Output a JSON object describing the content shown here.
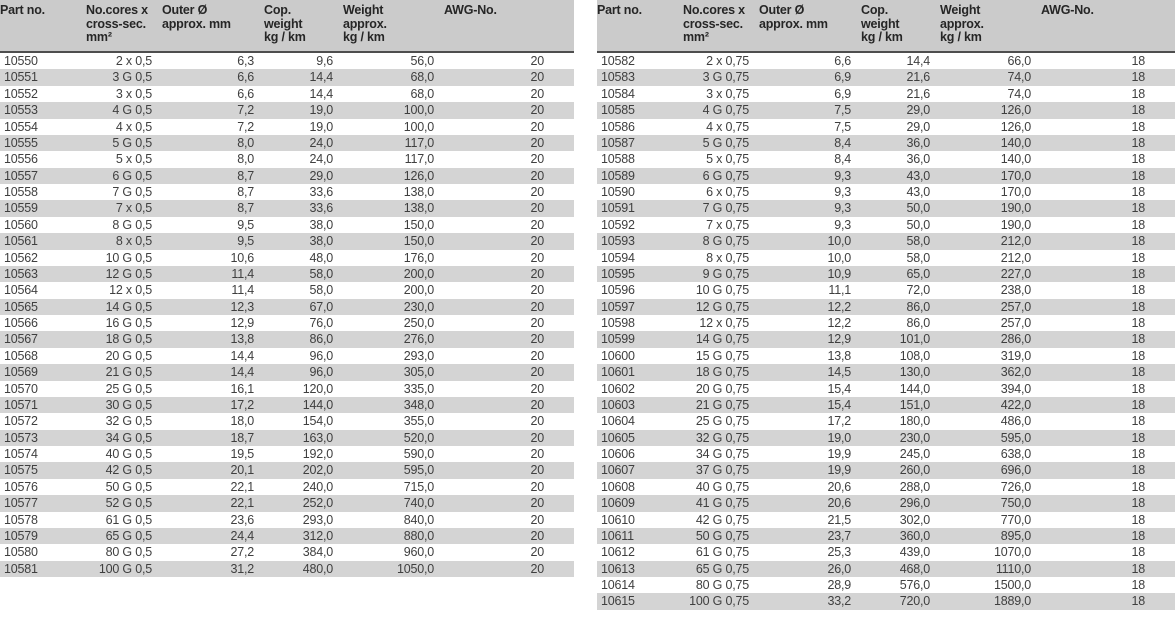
{
  "document": {
    "description": "Cable specification tables",
    "colors": {
      "header_bg": "#cbcbcb",
      "stripe_bg": "#d4d4d4",
      "header_rule": "#4e4e4e",
      "header_text": "#262626",
      "body_text": "#3f3f3f",
      "page_bg": "#ffffff"
    }
  },
  "columns": [
    {
      "id": "part",
      "lines": [
        "Part no.",
        "",
        ""
      ]
    },
    {
      "id": "cores",
      "lines": [
        "No.cores x",
        "cross-sec.",
        "mm²"
      ]
    },
    {
      "id": "outer",
      "lines": [
        "Outer Ø",
        "approx. mm",
        ""
      ]
    },
    {
      "id": "cop",
      "lines": [
        "Cop.",
        "weight",
        "kg / km"
      ]
    },
    {
      "id": "weight",
      "lines": [
        "Weight",
        "approx.",
        "kg / km"
      ]
    },
    {
      "id": "awg",
      "lines": [
        "AWG-No.",
        "",
        ""
      ]
    }
  ],
  "tables": [
    {
      "name": "cable-table-0.5mm2",
      "rows": [
        [
          "10550",
          "2 x 0,5",
          "6,3",
          "9,6",
          "56,0",
          "20"
        ],
        [
          "10551",
          "3 G 0,5",
          "6,6",
          "14,4",
          "68,0",
          "20"
        ],
        [
          "10552",
          "3 x 0,5",
          "6,6",
          "14,4",
          "68,0",
          "20"
        ],
        [
          "10553",
          "4 G 0,5",
          "7,2",
          "19,0",
          "100,0",
          "20"
        ],
        [
          "10554",
          "4 x 0,5",
          "7,2",
          "19,0",
          "100,0",
          "20"
        ],
        [
          "10555",
          "5 G 0,5",
          "8,0",
          "24,0",
          "117,0",
          "20"
        ],
        [
          "10556",
          "5 x 0,5",
          "8,0",
          "24,0",
          "117,0",
          "20"
        ],
        [
          "10557",
          "6 G 0,5",
          "8,7",
          "29,0",
          "126,0",
          "20"
        ],
        [
          "10558",
          "7 G 0,5",
          "8,7",
          "33,6",
          "138,0",
          "20"
        ],
        [
          "10559",
          "7 x 0,5",
          "8,7",
          "33,6",
          "138,0",
          "20"
        ],
        [
          "10560",
          "8 G 0,5",
          "9,5",
          "38,0",
          "150,0",
          "20"
        ],
        [
          "10561",
          "8 x 0,5",
          "9,5",
          "38,0",
          "150,0",
          "20"
        ],
        [
          "10562",
          "10 G 0,5",
          "10,6",
          "48,0",
          "176,0",
          "20"
        ],
        [
          "10563",
          "12 G 0,5",
          "11,4",
          "58,0",
          "200,0",
          "20"
        ],
        [
          "10564",
          "12 x 0,5",
          "11,4",
          "58,0",
          "200,0",
          "20"
        ],
        [
          "10565",
          "14 G 0,5",
          "12,3",
          "67,0",
          "230,0",
          "20"
        ],
        [
          "10566",
          "16 G 0,5",
          "12,9",
          "76,0",
          "250,0",
          "20"
        ],
        [
          "10567",
          "18 G 0,5",
          "13,8",
          "86,0",
          "276,0",
          "20"
        ],
        [
          "10568",
          "20 G 0,5",
          "14,4",
          "96,0",
          "293,0",
          "20"
        ],
        [
          "10569",
          "21 G 0,5",
          "14,4",
          "96,0",
          "305,0",
          "20"
        ],
        [
          "10570",
          "25 G 0,5",
          "16,1",
          "120,0",
          "335,0",
          "20"
        ],
        [
          "10571",
          "30 G 0,5",
          "17,2",
          "144,0",
          "348,0",
          "20"
        ],
        [
          "10572",
          "32 G 0,5",
          "18,0",
          "154,0",
          "355,0",
          "20"
        ],
        [
          "10573",
          "34 G 0,5",
          "18,7",
          "163,0",
          "520,0",
          "20"
        ],
        [
          "10574",
          "40 G 0,5",
          "19,5",
          "192,0",
          "590,0",
          "20"
        ],
        [
          "10575",
          "42 G 0,5",
          "20,1",
          "202,0",
          "595,0",
          "20"
        ],
        [
          "10576",
          "50 G 0,5",
          "22,1",
          "240,0",
          "715,0",
          "20"
        ],
        [
          "10577",
          "52 G 0,5",
          "22,1",
          "252,0",
          "740,0",
          "20"
        ],
        [
          "10578",
          "61 G 0,5",
          "23,6",
          "293,0",
          "840,0",
          "20"
        ],
        [
          "10579",
          "65 G 0,5",
          "24,4",
          "312,0",
          "880,0",
          "20"
        ],
        [
          "10580",
          "80 G 0,5",
          "27,2",
          "384,0",
          "960,0",
          "20"
        ],
        [
          "10581",
          "100 G 0,5",
          "31,2",
          "480,0",
          "1050,0",
          "20"
        ]
      ]
    },
    {
      "name": "cable-table-0.75mm2",
      "rows": [
        [
          "10582",
          "2 x 0,75",
          "6,6",
          "14,4",
          "66,0",
          "18"
        ],
        [
          "10583",
          "3 G 0,75",
          "6,9",
          "21,6",
          "74,0",
          "18"
        ],
        [
          "10584",
          "3 x 0,75",
          "6,9",
          "21,6",
          "74,0",
          "18"
        ],
        [
          "10585",
          "4 G 0,75",
          "7,5",
          "29,0",
          "126,0",
          "18"
        ],
        [
          "10586",
          "4 x 0,75",
          "7,5",
          "29,0",
          "126,0",
          "18"
        ],
        [
          "10587",
          "5 G 0,75",
          "8,4",
          "36,0",
          "140,0",
          "18"
        ],
        [
          "10588",
          "5 x 0,75",
          "8,4",
          "36,0",
          "140,0",
          "18"
        ],
        [
          "10589",
          "6 G 0,75",
          "9,3",
          "43,0",
          "170,0",
          "18"
        ],
        [
          "10590",
          "6 x 0,75",
          "9,3",
          "43,0",
          "170,0",
          "18"
        ],
        [
          "10591",
          "7 G 0,75",
          "9,3",
          "50,0",
          "190,0",
          "18"
        ],
        [
          "10592",
          "7 x 0,75",
          "9,3",
          "50,0",
          "190,0",
          "18"
        ],
        [
          "10593",
          "8 G 0,75",
          "10,0",
          "58,0",
          "212,0",
          "18"
        ],
        [
          "10594",
          "8 x 0,75",
          "10,0",
          "58,0",
          "212,0",
          "18"
        ],
        [
          "10595",
          "9 G 0,75",
          "10,9",
          "65,0",
          "227,0",
          "18"
        ],
        [
          "10596",
          "10 G 0,75",
          "11,1",
          "72,0",
          "238,0",
          "18"
        ],
        [
          "10597",
          "12 G 0,75",
          "12,2",
          "86,0",
          "257,0",
          "18"
        ],
        [
          "10598",
          "12 x 0,75",
          "12,2",
          "86,0",
          "257,0",
          "18"
        ],
        [
          "10599",
          "14 G 0,75",
          "12,9",
          "101,0",
          "286,0",
          "18"
        ],
        [
          "10600",
          "15 G 0,75",
          "13,8",
          "108,0",
          "319,0",
          "18"
        ],
        [
          "10601",
          "18 G 0,75",
          "14,5",
          "130,0",
          "362,0",
          "18"
        ],
        [
          "10602",
          "20 G 0,75",
          "15,4",
          "144,0",
          "394,0",
          "18"
        ],
        [
          "10603",
          "21 G 0,75",
          "15,4",
          "151,0",
          "422,0",
          "18"
        ],
        [
          "10604",
          "25 G 0,75",
          "17,2",
          "180,0",
          "486,0",
          "18"
        ],
        [
          "10605",
          "32 G 0,75",
          "19,0",
          "230,0",
          "595,0",
          "18"
        ],
        [
          "10606",
          "34 G 0,75",
          "19,9",
          "245,0",
          "638,0",
          "18"
        ],
        [
          "10607",
          "37 G 0,75",
          "19,9",
          "260,0",
          "696,0",
          "18"
        ],
        [
          "10608",
          "40 G 0,75",
          "20,6",
          "288,0",
          "726,0",
          "18"
        ],
        [
          "10609",
          "41 G 0,75",
          "20,6",
          "296,0",
          "750,0",
          "18"
        ],
        [
          "10610",
          "42 G 0,75",
          "21,5",
          "302,0",
          "770,0",
          "18"
        ],
        [
          "10611",
          "50 G 0,75",
          "23,7",
          "360,0",
          "895,0",
          "18"
        ],
        [
          "10612",
          "61 G 0,75",
          "25,3",
          "439,0",
          "1070,0",
          "18"
        ],
        [
          "10613",
          "65 G 0,75",
          "26,0",
          "468,0",
          "1110,0",
          "18"
        ],
        [
          "10614",
          "80 G 0,75",
          "28,9",
          "576,0",
          "1500,0",
          "18"
        ],
        [
          "10615",
          "100 G 0,75",
          "33,2",
          "720,0",
          "1889,0",
          "18"
        ]
      ]
    }
  ]
}
